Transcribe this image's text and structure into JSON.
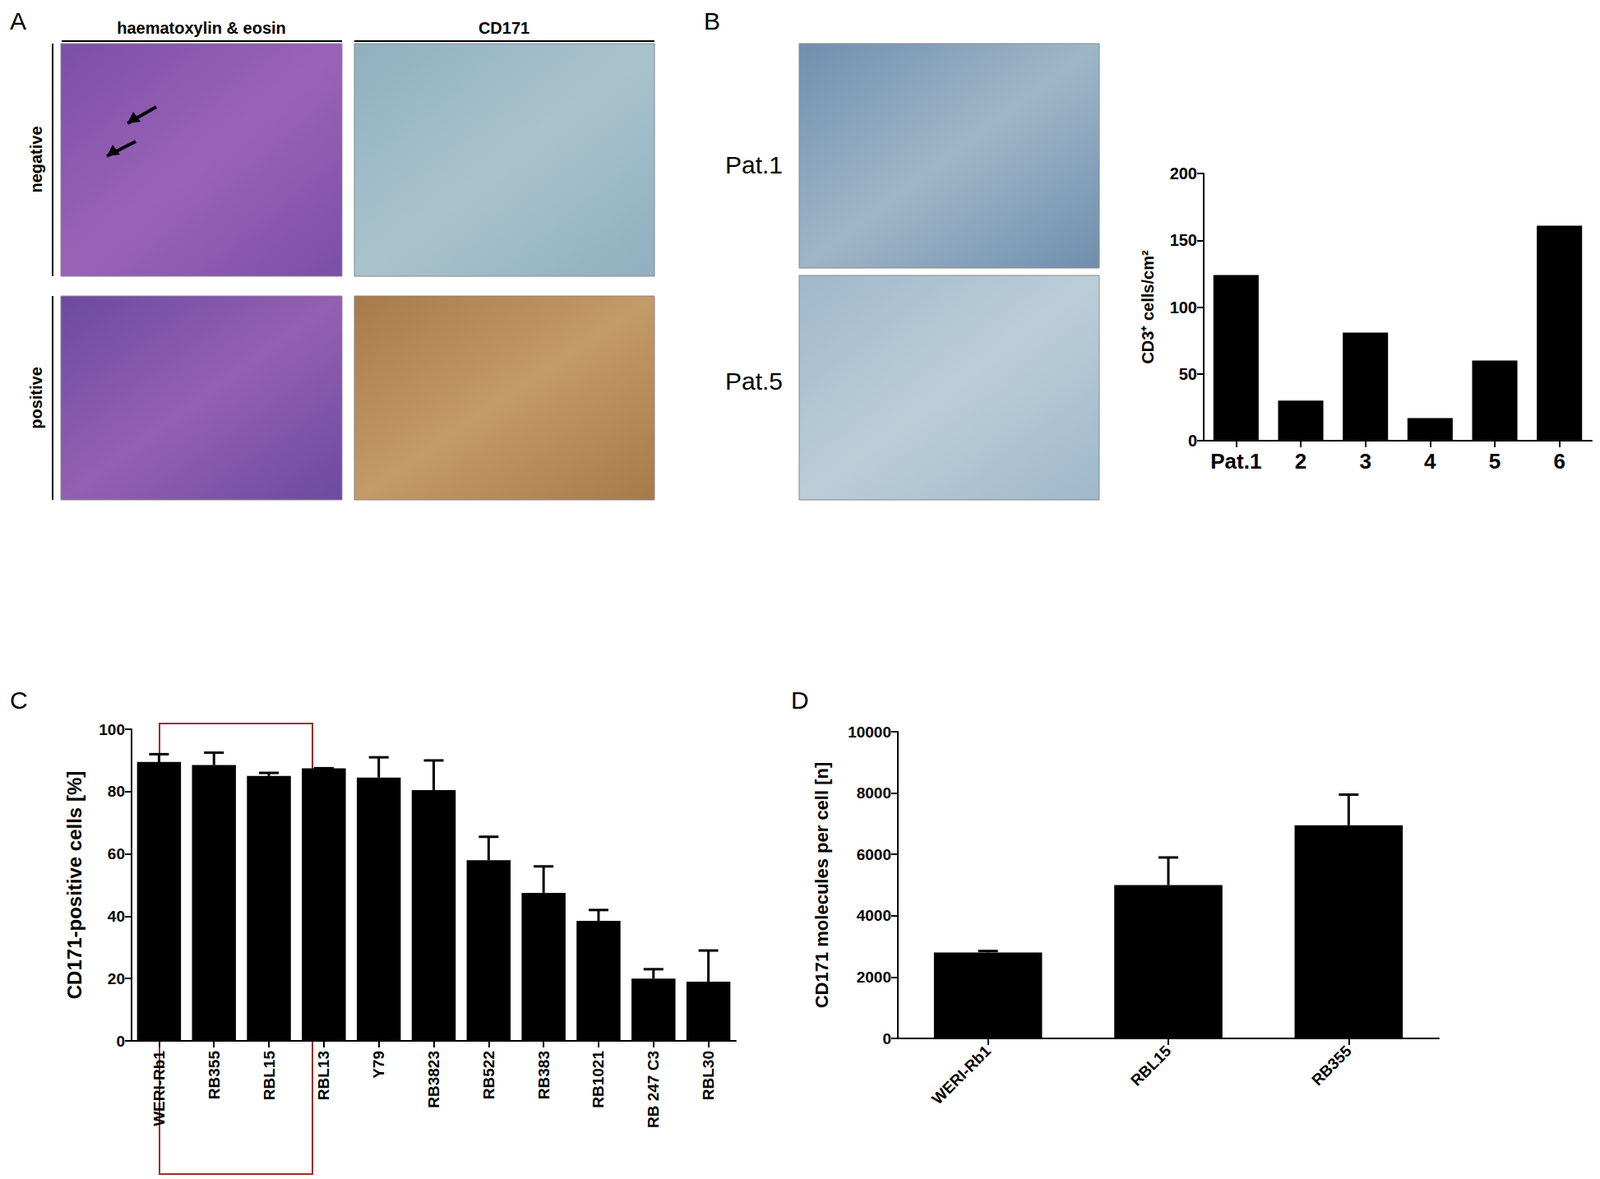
{
  "chart_data": [
    {
      "type": "bar",
      "categories": [
        "Pat.1",
        "2",
        "3",
        "4",
        "5",
        "6"
      ],
      "values": [
        124,
        30,
        81,
        17,
        60,
        161
      ],
      "color": "#000000",
      "y_label": "CD3⁺ cells/cm²",
      "ylim": [
        0,
        200
      ],
      "yticks": [
        0,
        50,
        100,
        150,
        200
      ],
      "grid": false
    },
    {
      "type": "bar",
      "categories": [
        "WERI-Rb1",
        "RB355",
        "RBL15",
        "RBL13",
        "Y79",
        "RB3823",
        "RB522",
        "RB383",
        "RB1021",
        "RB 247 C3",
        "RBL30"
      ],
      "values": [
        89.5,
        88.5,
        85,
        87.5,
        84.5,
        80.5,
        58,
        47.5,
        38.5,
        20,
        19
      ],
      "errors": [
        2.5,
        4,
        1,
        0,
        6.5,
        9.5,
        7.5,
        8.5,
        3.5,
        3,
        10
      ],
      "color": "#000000",
      "y_label": "CD171-positive cells [%]",
      "ylim": [
        0,
        100
      ],
      "yticks": [
        0,
        20,
        40,
        60,
        80,
        100
      ],
      "grid": false
    },
    {
      "type": "bar",
      "categories": [
        "WERI-Rb1",
        "RBL15",
        "RB355"
      ],
      "values": [
        2800,
        5000,
        6950
      ],
      "errors": [
        50,
        900,
        1000
      ],
      "color": "#000000",
      "y_label": "CD171 molecules per cell [n]",
      "ylim": [
        0,
        10000
      ],
      "yticks": [
        0,
        2000,
        4000,
        6000,
        8000,
        10000
      ],
      "grid": false
    }
  ],
  "panel_labels": [
    "A",
    "B",
    "C",
    "D"
  ],
  "image_panels": {
    "A": {
      "column_titles": [
        "haematoxylin & eosin",
        "CD171"
      ],
      "row_titles": [
        "negative",
        "positive"
      ]
    },
    "B": {
      "row_titles": [
        "Pat.1",
        "Pat.5"
      ]
    }
  }
}
